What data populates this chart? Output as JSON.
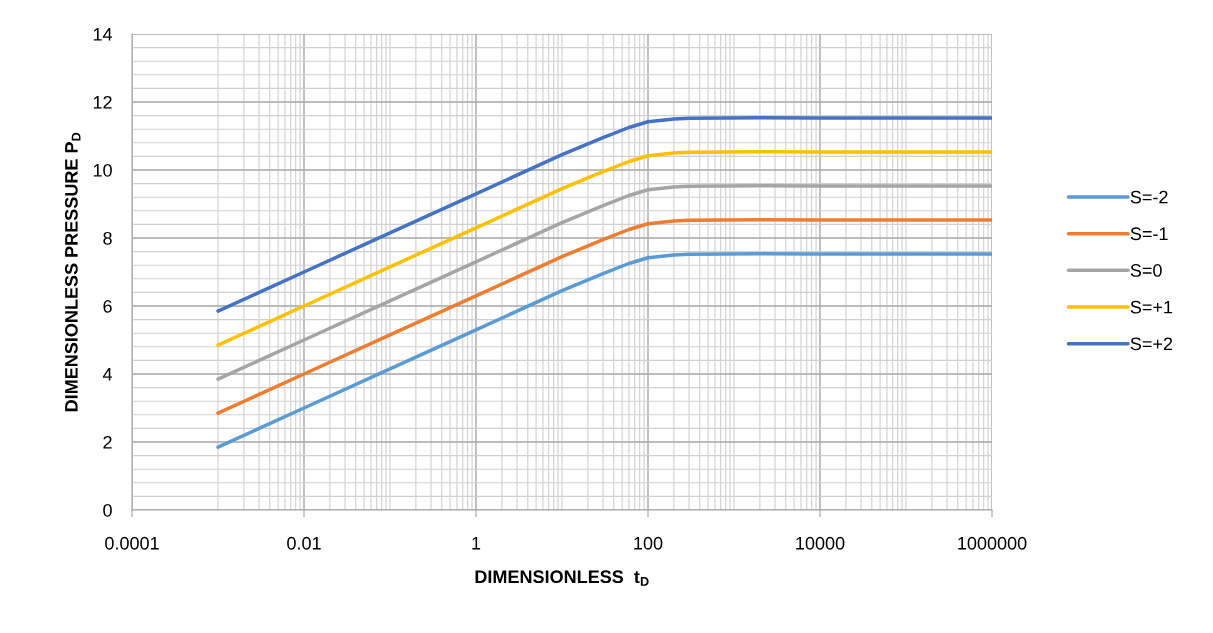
{
  "chart_data": {
    "type": "line",
    "xlabel": "DIMENSIONLESS  t$_{D}$",
    "ylabel": "DIMENSIONLESS PRESSURE P$_{D}$",
    "x": [
      0.001,
      0.01,
      0.1,
      1,
      10,
      30,
      60,
      100,
      200,
      300,
      2000,
      10000,
      1000000
    ],
    "series": [
      {
        "name": "S=-2",
        "color": "#5b9bd5",
        "values": [
          1.85,
          3.0,
          4.15,
          5.3,
          6.45,
          6.95,
          7.25,
          7.42,
          7.5,
          7.52,
          7.54,
          7.53,
          7.53
        ]
      },
      {
        "name": "S=-1",
        "color": "#ed7d31",
        "values": [
          2.85,
          4.0,
          5.15,
          6.3,
          7.45,
          7.95,
          8.25,
          8.42,
          8.5,
          8.52,
          8.54,
          8.53,
          8.53
        ]
      },
      {
        "name": "S=0",
        "color": "#a5a5a5",
        "values": [
          3.85,
          5.0,
          6.15,
          7.3,
          8.45,
          8.95,
          9.25,
          9.42,
          9.5,
          9.52,
          9.54,
          9.53,
          9.53
        ]
      },
      {
        "name": "S=+1",
        "color": "#ffc000",
        "values": [
          4.85,
          6.0,
          7.15,
          8.3,
          9.45,
          9.95,
          10.25,
          10.42,
          10.5,
          10.52,
          10.54,
          10.53,
          10.53
        ]
      },
      {
        "name": "S=+2",
        "color": "#4472c4",
        "values": [
          5.85,
          7.0,
          8.15,
          9.3,
          10.45,
          10.95,
          11.25,
          11.42,
          11.5,
          11.52,
          11.54,
          11.53,
          11.53
        ]
      }
    ],
    "log": "x",
    "xlim": [
      0.0001,
      1000000
    ],
    "xticks": [
      0.0001,
      0.01,
      1,
      100,
      10000,
      1000000
    ],
    "ylim": [
      0,
      14
    ],
    "yticks": [
      0,
      2,
      4,
      6,
      8,
      10,
      12,
      14
    ],
    "grid": true,
    "legend": "right",
    "marker": "none",
    "line_style": "solid"
  }
}
